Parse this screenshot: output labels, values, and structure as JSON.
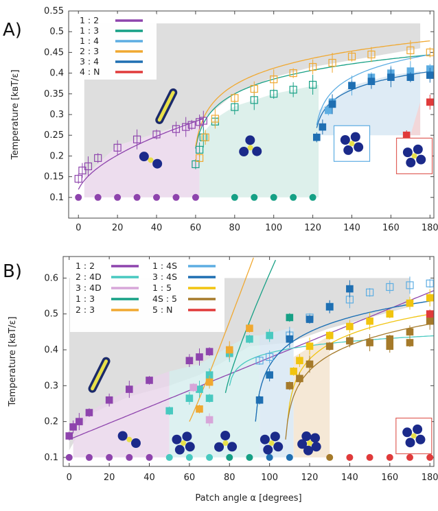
{
  "chart_data": [
    {
      "panel_label": "A)",
      "type": "scatter",
      "xlabel": "",
      "ylabel": "Temperature [kʙT/ε]",
      "xlim": [
        -5,
        182
      ],
      "ylim": [
        0.05,
        0.55
      ],
      "xticks": [
        "0",
        "20",
        "40",
        "60",
        "80",
        "100",
        "120",
        "140",
        "160",
        "180"
      ],
      "yticks": [
        "0.1",
        "0.15",
        "0.2",
        "0.25",
        "0.3",
        "0.35",
        "0.4",
        "0.45",
        "0.5",
        "0.55"
      ],
      "legend_position": "top-left",
      "series": [
        {
          "name": "1 : 2",
          "color": "#8e44ad",
          "points": [
            [
              0,
              0.145
            ],
            [
              2,
              0.165
            ],
            [
              5,
              0.175
            ],
            [
              10,
              0.195
            ],
            [
              20,
              0.22
            ],
            [
              30,
              0.24
            ],
            [
              40,
              0.252
            ],
            [
              50,
              0.265
            ],
            [
              55,
              0.27
            ],
            [
              58,
              0.275
            ],
            [
              62,
              0.282
            ],
            [
              64,
              0.285
            ]
          ],
          "ground": [
            [
              0,
              0.1
            ],
            [
              10,
              0.1
            ],
            [
              20,
              0.1
            ],
            [
              30,
              0.1
            ],
            [
              40,
              0.1
            ],
            [
              50,
              0.1
            ],
            [
              60,
              0.1
            ]
          ]
        },
        {
          "name": "1 : 3",
          "color": "#16a085",
          "points": [
            [
              60,
              0.18
            ],
            [
              62,
              0.215
            ],
            [
              64,
              0.245
            ],
            [
              70,
              0.283
            ],
            [
              80,
              0.318
            ],
            [
              90,
              0.335
            ],
            [
              100,
              0.35
            ],
            [
              110,
              0.36
            ],
            [
              120,
              0.372
            ]
          ],
          "ground": [
            [
              80,
              0.1
            ],
            [
              90,
              0.1
            ],
            [
              100,
              0.1
            ],
            [
              110,
              0.1
            ],
            [
              120,
              0.1
            ]
          ]
        },
        {
          "name": "1 : 4",
          "color": "#5dade2",
          "points": [
            [
              128,
              0.31
            ],
            [
              130,
              0.33
            ],
            [
              140,
              0.37
            ],
            [
              150,
              0.39
            ],
            [
              160,
              0.4
            ],
            [
              170,
              0.405
            ],
            [
              180,
              0.41
            ]
          ],
          "ground": []
        },
        {
          "name": "2 : 3",
          "color": "#f0a830",
          "points": [
            [
              62,
              0.195
            ],
            [
              65,
              0.245
            ],
            [
              70,
              0.29
            ],
            [
              80,
              0.34
            ],
            [
              90,
              0.362
            ],
            [
              100,
              0.385
            ],
            [
              110,
              0.4
            ],
            [
              120,
              0.415
            ],
            [
              130,
              0.425
            ],
            [
              140,
              0.44
            ],
            [
              150,
              0.445
            ],
            [
              170,
              0.455
            ],
            [
              180,
              0.45
            ]
          ],
          "ground": []
        },
        {
          "name": "3 : 4",
          "color": "#1f6fb2",
          "points": [
            [
              122,
              0.245
            ],
            [
              125,
              0.27
            ],
            [
              130,
              0.325
            ],
            [
              140,
              0.37
            ],
            [
              150,
              0.38
            ],
            [
              160,
              0.39
            ],
            [
              170,
              0.39
            ],
            [
              180,
              0.395
            ]
          ],
          "ground": []
        },
        {
          "name": "4 : N",
          "color": "#e03a3a",
          "points": [
            [
              168,
              0.25
            ],
            [
              180,
              0.33
            ]
          ],
          "ground": []
        }
      ]
    },
    {
      "panel_label": "B)",
      "type": "scatter",
      "xlabel": "Patch angle α [degrees]",
      "ylabel": "Temperature [kʙT/ε]",
      "xlim": [
        -3,
        182
      ],
      "ylim": [
        0.075,
        0.66
      ],
      "xticks": [
        "0",
        "20",
        "40",
        "60",
        "80",
        "100",
        "120",
        "140",
        "160",
        "180"
      ],
      "yticks": [
        "0.1",
        "0.2",
        "0.3",
        "0.4",
        "0.5",
        "0.6"
      ],
      "legend_position": "top-left",
      "series": [
        {
          "name": "1 : 2",
          "color": "#8e44ad",
          "points": [
            [
              0,
              0.16
            ],
            [
              2,
              0.185
            ],
            [
              5,
              0.2
            ],
            [
              10,
              0.225
            ],
            [
              20,
              0.26
            ],
            [
              30,
              0.29
            ],
            [
              40,
              0.315
            ],
            [
              60,
              0.37
            ],
            [
              65,
              0.38
            ],
            [
              70,
              0.395
            ],
            [
              80,
              0.39
            ]
          ],
          "ground": [
            [
              0,
              0.1
            ],
            [
              10,
              0.1
            ],
            [
              20,
              0.1
            ],
            [
              30,
              0.1
            ],
            [
              40,
              0.1
            ]
          ]
        },
        {
          "name": "2 : 4D",
          "color": "#48c9c0",
          "points": [
            [
              50,
              0.23
            ],
            [
              60,
              0.265
            ],
            [
              65,
              0.29
            ],
            [
              70,
              0.265
            ],
            [
              70,
              0.33
            ],
            [
              80,
              0.39
            ],
            [
              90,
              0.43
            ],
            [
              100,
              0.44
            ]
          ],
          "ground": [
            [
              50,
              0.1
            ],
            [
              60,
              0.1
            ],
            [
              70,
              0.1
            ]
          ]
        },
        {
          "name": "3 : 4D",
          "color": "#d7a6d9",
          "points": [
            [
              62,
              0.295
            ],
            [
              70,
              0.205
            ]
          ],
          "ground": []
        },
        {
          "name": "1 : 3",
          "color": "#16a085",
          "points": [
            [
              110,
              0.49
            ]
          ],
          "ground": [
            [
              80,
              0.1
            ],
            [
              90,
              0.1
            ]
          ]
        },
        {
          "name": "2 : 3",
          "color": "#f0a830",
          "points": [
            [
              65,
              0.235
            ],
            [
              70,
              0.31
            ],
            [
              80,
              0.4
            ],
            [
              90,
              0.46
            ]
          ],
          "ground": []
        },
        {
          "name": "1 : 4S",
          "color": "#5dade2",
          "points": [
            [
              95,
              0.37
            ],
            [
              100,
              0.38
            ],
            [
              110,
              0.44
            ],
            [
              120,
              0.49
            ],
            [
              130,
              0.52
            ],
            [
              140,
              0.54
            ],
            [
              150,
              0.56
            ],
            [
              160,
              0.575
            ],
            [
              170,
              0.58
            ],
            [
              180,
              0.585
            ]
          ],
          "ground": []
        },
        {
          "name": "3 : 4S",
          "color": "#1f6fb2",
          "points": [
            [
              95,
              0.26
            ],
            [
              100,
              0.33
            ],
            [
              110,
              0.43
            ],
            [
              120,
              0.485
            ],
            [
              130,
              0.52
            ],
            [
              140,
              0.57
            ]
          ],
          "ground": [
            [
              100,
              0.1
            ],
            [
              110,
              0.1
            ]
          ]
        },
        {
          "name": "1 : 5",
          "color": "#f1c40f",
          "points": [
            [
              112,
              0.34
            ],
            [
              115,
              0.37
            ],
            [
              120,
              0.41
            ],
            [
              130,
              0.44
            ],
            [
              140,
              0.465
            ],
            [
              150,
              0.48
            ],
            [
              160,
              0.5
            ],
            [
              170,
              0.53
            ],
            [
              180,
              0.545
            ]
          ],
          "ground": []
        },
        {
          "name": "4S : 5",
          "color": "#a57a2a",
          "points": [
            [
              110,
              0.3
            ],
            [
              115,
              0.32
            ],
            [
              120,
              0.36
            ],
            [
              130,
              0.41
            ],
            [
              140,
              0.425
            ],
            [
              150,
              0.42
            ],
            [
              160,
              0.43
            ],
            [
              170,
              0.45
            ],
            [
              180,
              0.48
            ],
            [
              170,
              0.42
            ],
            [
              160,
              0.41
            ]
          ],
          "ground": [
            [
              130,
              0.1
            ]
          ]
        },
        {
          "name": "5 : N",
          "color": "#e03a3a",
          "points": [
            [
              180,
              0.5
            ]
          ],
          "ground": [
            [
              140,
              0.1
            ],
            [
              150,
              0.1
            ],
            [
              160,
              0.1
            ],
            [
              170,
              0.1
            ],
            [
              180,
              0.1
            ]
          ]
        }
      ]
    }
  ]
}
